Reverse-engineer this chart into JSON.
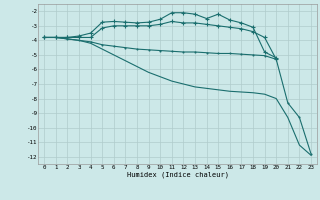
{
  "xlabel": "Humidex (Indice chaleur)",
  "bg_color": "#cce8e8",
  "grid_color": "#b0cccc",
  "line_color": "#1a6e6e",
  "xlim": [
    -0.5,
    23.5
  ],
  "ylim": [
    -12.5,
    -1.5
  ],
  "xticks": [
    0,
    1,
    2,
    3,
    4,
    5,
    6,
    7,
    8,
    9,
    10,
    11,
    12,
    13,
    14,
    15,
    16,
    17,
    18,
    19,
    20,
    21,
    22,
    23
  ],
  "yticks": [
    -2,
    -3,
    -4,
    -5,
    -6,
    -7,
    -8,
    -9,
    -10,
    -11,
    -12
  ],
  "line1_x": [
    0,
    1,
    2,
    3,
    4,
    5,
    6,
    7,
    8,
    9,
    10,
    11,
    12,
    13,
    14,
    15,
    16,
    17,
    18,
    19,
    20
  ],
  "line1_y": [
    -3.8,
    -3.8,
    -3.8,
    -3.7,
    -3.5,
    -2.75,
    -2.7,
    -2.75,
    -2.8,
    -2.75,
    -2.55,
    -2.1,
    -2.1,
    -2.2,
    -2.5,
    -2.2,
    -2.6,
    -2.8,
    -3.1,
    -4.8,
    -5.2
  ],
  "line2_x": [
    0,
    1,
    2,
    3,
    4,
    5,
    6,
    7,
    8,
    9,
    10,
    11,
    12,
    13,
    14,
    15,
    16,
    17,
    18,
    19,
    20
  ],
  "line2_y": [
    -3.8,
    -3.8,
    -3.8,
    -3.8,
    -3.8,
    -3.15,
    -3.0,
    -3.0,
    -3.0,
    -3.0,
    -2.9,
    -2.7,
    -2.8,
    -2.8,
    -2.9,
    -3.0,
    -3.1,
    -3.2,
    -3.4,
    -3.8,
    -5.3
  ],
  "line3_x": [
    0,
    1,
    2,
    3,
    4,
    5,
    6,
    7,
    8,
    9,
    10,
    11,
    12,
    13,
    14,
    15,
    16,
    17,
    18,
    19,
    20,
    21,
    22,
    23
  ],
  "line3_y": [
    -3.8,
    -3.8,
    -3.9,
    -4.0,
    -4.1,
    -4.3,
    -4.4,
    -4.5,
    -4.6,
    -4.65,
    -4.7,
    -4.75,
    -4.8,
    -4.8,
    -4.85,
    -4.9,
    -4.9,
    -4.95,
    -5.0,
    -5.05,
    -5.3,
    -8.3,
    -9.3,
    -11.8
  ],
  "line4_x": [
    0,
    1,
    2,
    3,
    4,
    5,
    6,
    7,
    8,
    9,
    10,
    11,
    12,
    13,
    14,
    15,
    16,
    17,
    18,
    19,
    20,
    21,
    22,
    23
  ],
  "line4_y": [
    -3.8,
    -3.8,
    -3.9,
    -4.0,
    -4.2,
    -4.6,
    -5.0,
    -5.4,
    -5.8,
    -6.2,
    -6.5,
    -6.8,
    -7.0,
    -7.2,
    -7.3,
    -7.4,
    -7.5,
    -7.55,
    -7.6,
    -7.7,
    -8.0,
    -9.3,
    -11.2,
    -11.9
  ]
}
